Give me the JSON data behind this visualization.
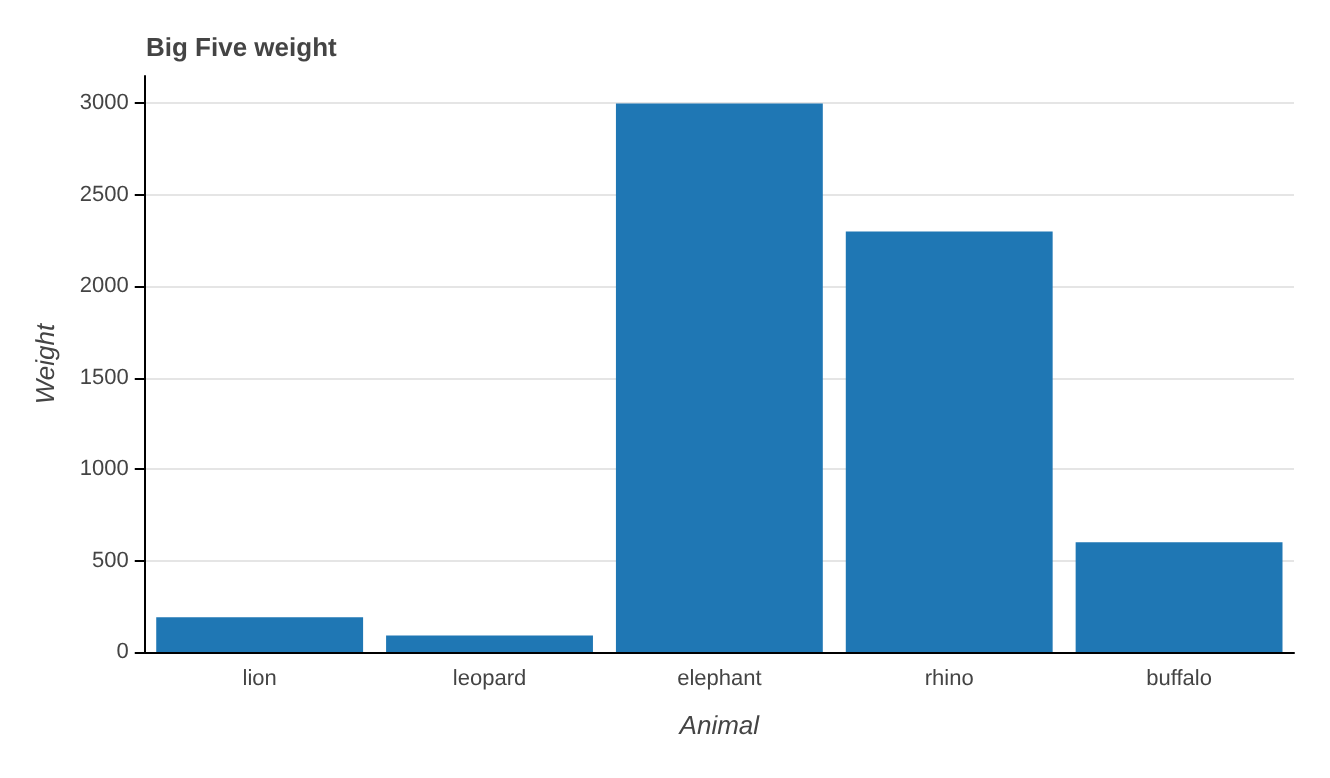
{
  "chart_data": {
    "type": "bar",
    "title": "Big Five weight",
    "xlabel": "Animal",
    "ylabel": "Weight",
    "categories": [
      "lion",
      "leopard",
      "elephant",
      "rhino",
      "buffalo"
    ],
    "values": [
      190,
      90,
      3000,
      2300,
      600
    ],
    "color": "#1f77b4",
    "ylim": [
      0,
      3150
    ],
    "yticks": [
      0,
      500,
      1000,
      1500,
      2000,
      2500,
      3000
    ],
    "grid": "y"
  }
}
